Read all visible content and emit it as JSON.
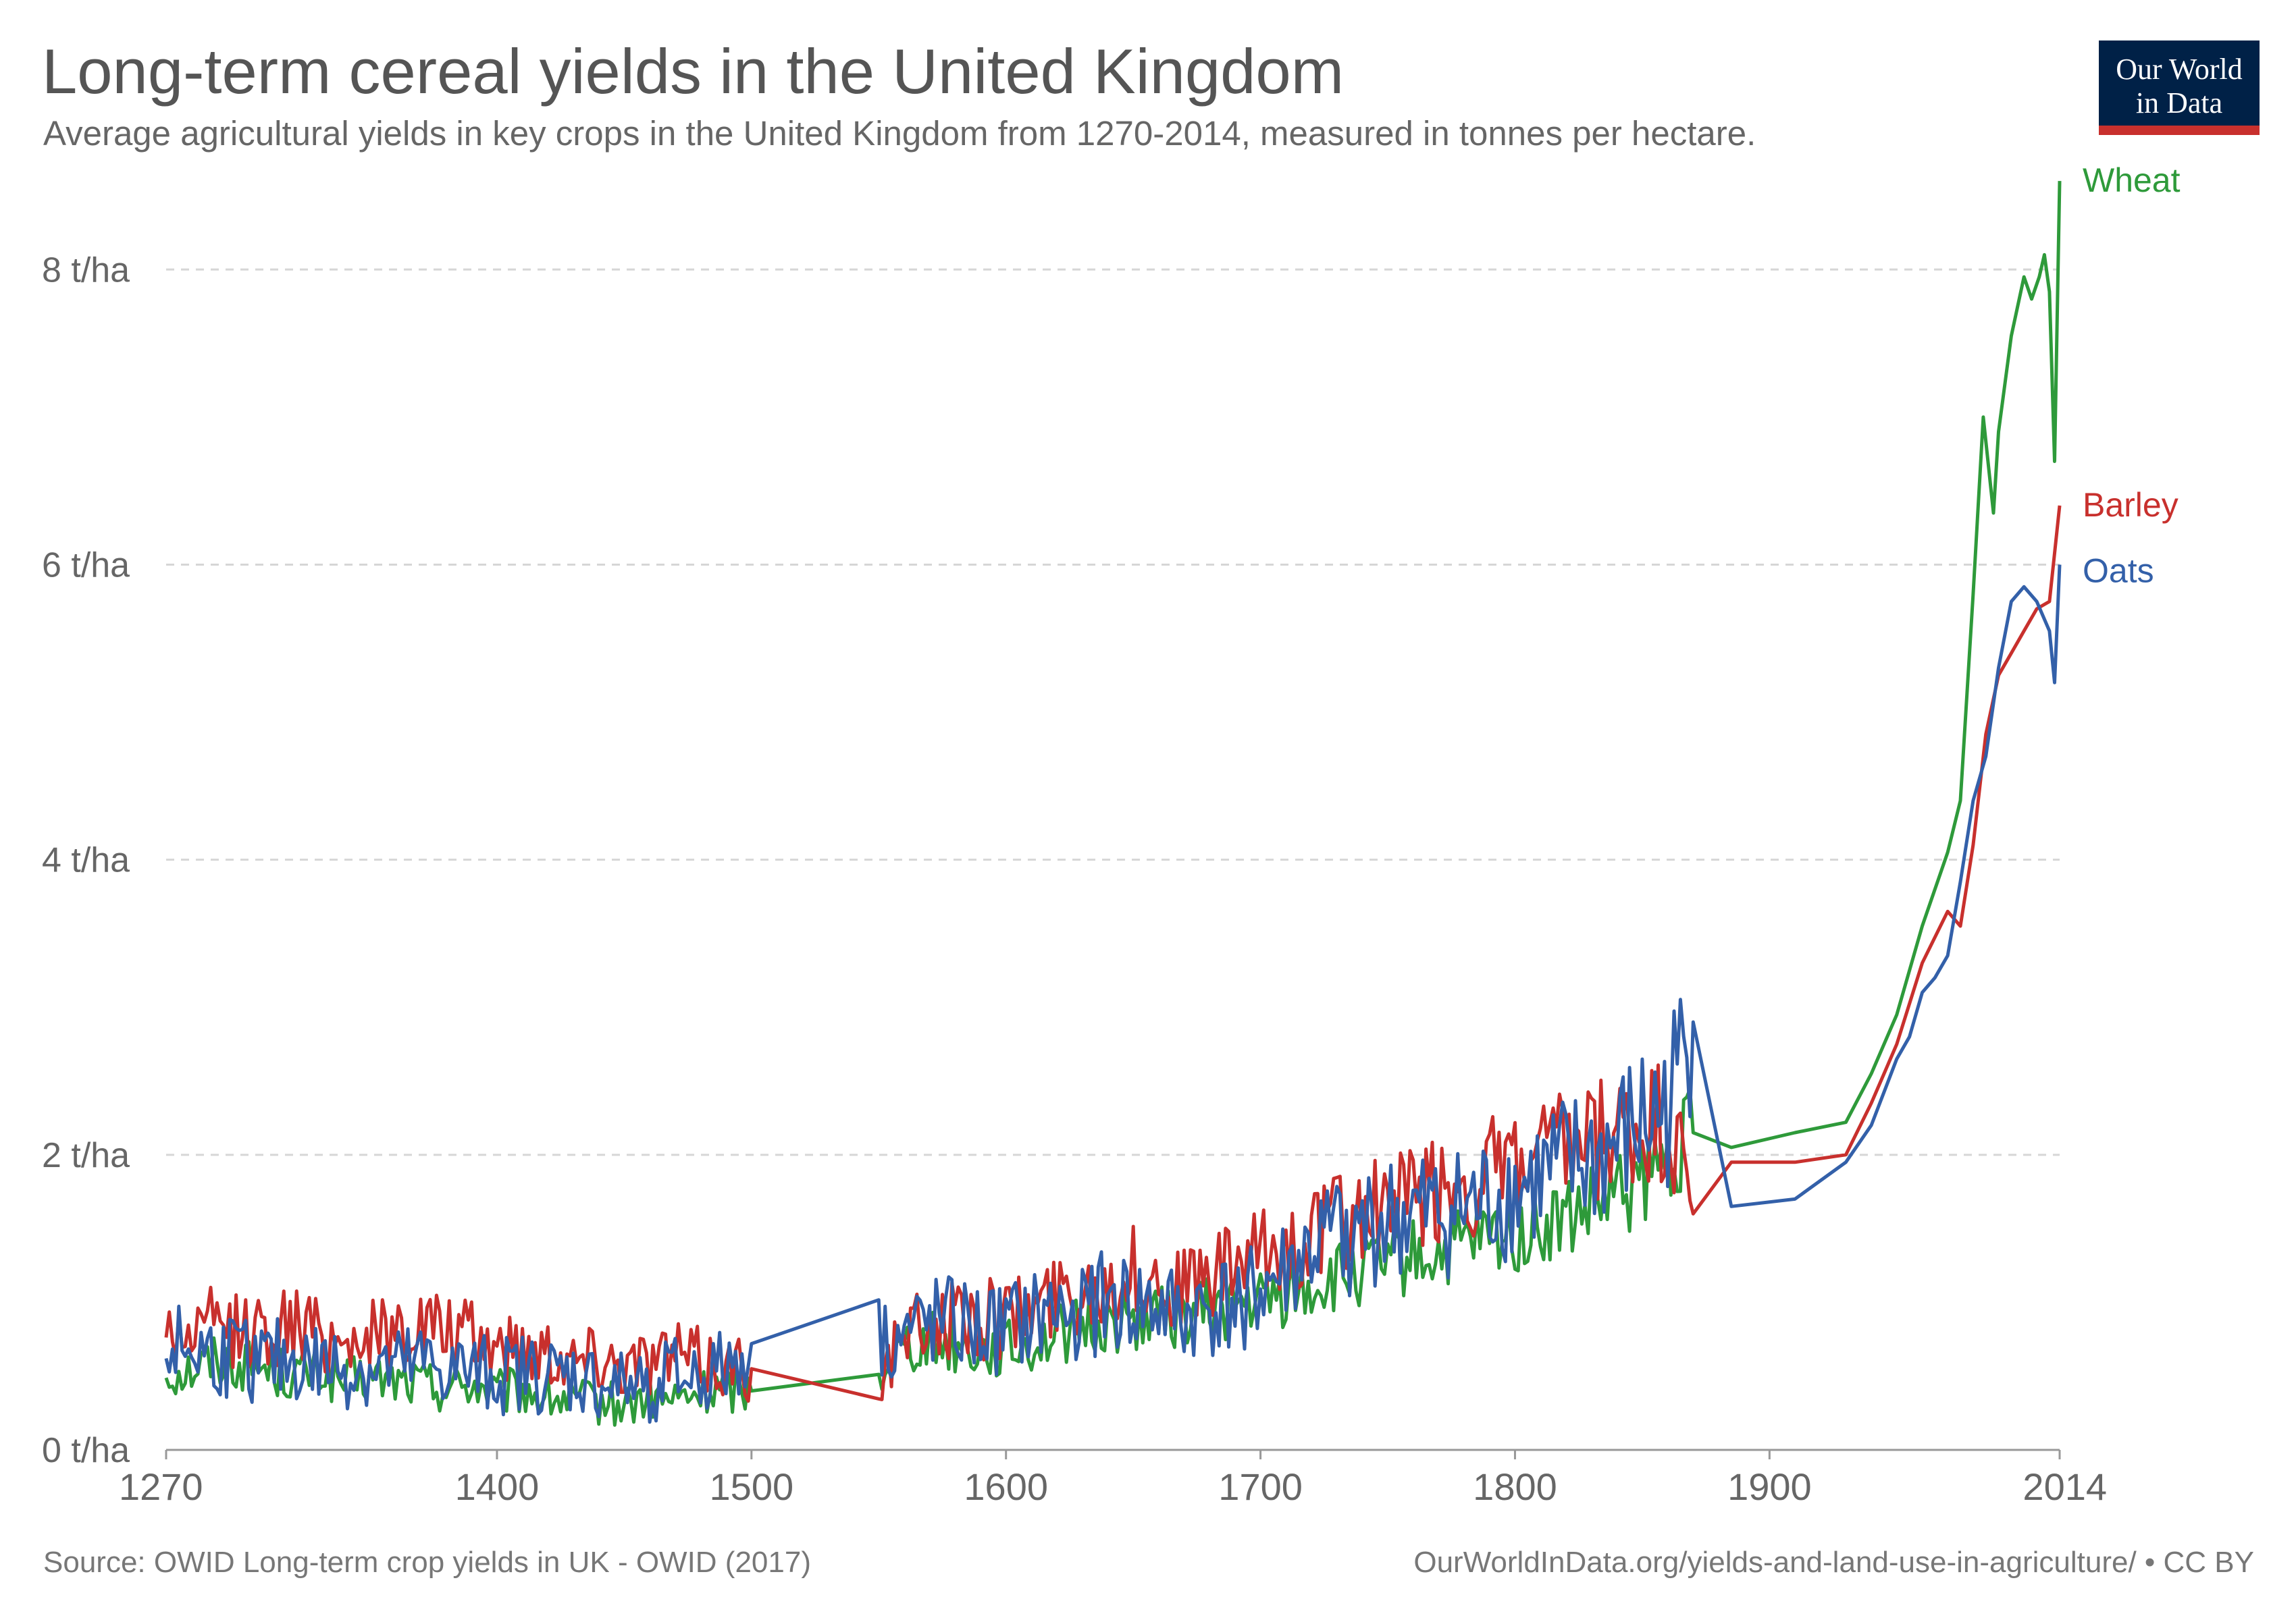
{
  "header": {
    "title": "Long-term cereal yields in the United Kingdom",
    "subtitle": "Average agricultural yields in key crops in the United Kingdom from 1270-2014, measured in tonnes per hectare."
  },
  "logo": {
    "line1": "Our World",
    "line2": "in Data",
    "bg_color": "#002147",
    "accent_color": "#c8302d"
  },
  "footer": {
    "source": "Source: OWID Long-term crop yields in UK - OWID (2017)",
    "license": "OurWorldInData.org/yields-and-land-use-in-agriculture/ • CC BY"
  },
  "chart_data": {
    "type": "line",
    "title": "Long-term cereal yields in the United Kingdom",
    "xlabel": "",
    "ylabel": "",
    "xlim": [
      1270,
      2014
    ],
    "ylim": [
      0,
      8.5
    ],
    "x_ticks": [
      1270,
      1400,
      1500,
      1600,
      1700,
      1800,
      1900,
      2014
    ],
    "y_ticks": [
      {
        "value": 0,
        "label": "0 t/ha"
      },
      {
        "value": 2,
        "label": "2 t/ha"
      },
      {
        "value": 4,
        "label": "4 t/ha"
      },
      {
        "value": 6,
        "label": "6 t/ha"
      },
      {
        "value": 8,
        "label": "8 t/ha"
      }
    ],
    "grid": "horizontal dashed",
    "legend": "line-end labels",
    "series": [
      {
        "name": "Wheat",
        "color": "#2e9a3a",
        "points": [
          [
            1270,
            0.52
          ],
          [
            1280,
            0.55
          ],
          [
            1290,
            0.62
          ],
          [
            1300,
            0.58
          ],
          [
            1310,
            0.55
          ],
          [
            1320,
            0.5
          ],
          [
            1330,
            0.53
          ],
          [
            1340,
            0.45
          ],
          [
            1350,
            0.48
          ],
          [
            1360,
            0.47
          ],
          [
            1370,
            0.45
          ],
          [
            1380,
            0.42
          ],
          [
            1390,
            0.45
          ],
          [
            1400,
            0.38
          ],
          [
            1410,
            0.4
          ],
          [
            1420,
            0.35
          ],
          [
            1430,
            0.33
          ],
          [
            1440,
            0.32
          ],
          [
            1450,
            0.3
          ],
          [
            1460,
            0.35
          ],
          [
            1470,
            0.33
          ],
          [
            1480,
            0.38
          ],
          [
            1490,
            0.42
          ],
          [
            1500,
            0.4
          ],
          [
            1550,
            0.55
          ],
          [
            1560,
            0.72
          ],
          [
            1570,
            0.75
          ],
          [
            1580,
            0.72
          ],
          [
            1590,
            0.68
          ],
          [
            1600,
            0.68
          ],
          [
            1610,
            0.72
          ],
          [
            1620,
            0.78
          ],
          [
            1630,
            0.82
          ],
          [
            1640,
            0.85
          ],
          [
            1650,
            0.88
          ],
          [
            1660,
            0.9
          ],
          [
            1670,
            0.92
          ],
          [
            1680,
            0.95
          ],
          [
            1690,
            0.98
          ],
          [
            1700,
            1.0
          ],
          [
            1710,
            1.05
          ],
          [
            1720,
            1.1
          ],
          [
            1730,
            1.15
          ],
          [
            1740,
            1.2
          ],
          [
            1750,
            1.25
          ],
          [
            1760,
            1.3
          ],
          [
            1770,
            1.32
          ],
          [
            1780,
            1.38
          ],
          [
            1790,
            1.42
          ],
          [
            1800,
            1.45
          ],
          [
            1810,
            1.5
          ],
          [
            1820,
            1.55
          ],
          [
            1830,
            1.62
          ],
          [
            1840,
            1.7
          ],
          [
            1850,
            1.8
          ],
          [
            1860,
            1.95
          ],
          [
            1870,
            2.15
          ],
          [
            1885,
            2.05
          ],
          [
            1910,
            2.15
          ],
          [
            1930,
            2.22
          ],
          [
            1940,
            2.55
          ],
          [
            1950,
            2.95
          ],
          [
            1960,
            3.55
          ],
          [
            1970,
            4.05
          ],
          [
            1975,
            4.4
          ],
          [
            1980,
            5.8
          ],
          [
            1984,
            7.0
          ],
          [
            1988,
            6.35
          ],
          [
            1990,
            6.9
          ],
          [
            1995,
            7.55
          ],
          [
            2000,
            7.95
          ],
          [
            2003,
            7.8
          ],
          [
            2006,
            7.95
          ],
          [
            2008,
            8.1
          ],
          [
            2010,
            7.85
          ],
          [
            2012,
            6.7
          ],
          [
            2014,
            8.6
          ]
        ]
      },
      {
        "name": "Barley",
        "color": "#c8302d",
        "points": [
          [
            1270,
            0.82
          ],
          [
            1280,
            0.78
          ],
          [
            1290,
            0.85
          ],
          [
            1300,
            0.8
          ],
          [
            1310,
            0.82
          ],
          [
            1320,
            0.85
          ],
          [
            1330,
            0.78
          ],
          [
            1340,
            0.75
          ],
          [
            1350,
            0.78
          ],
          [
            1360,
            0.8
          ],
          [
            1370,
            0.85
          ],
          [
            1380,
            0.8
          ],
          [
            1390,
            0.75
          ],
          [
            1400,
            0.72
          ],
          [
            1410,
            0.68
          ],
          [
            1420,
            0.7
          ],
          [
            1430,
            0.62
          ],
          [
            1440,
            0.65
          ],
          [
            1450,
            0.6
          ],
          [
            1460,
            0.62
          ],
          [
            1470,
            0.65
          ],
          [
            1480,
            0.6
          ],
          [
            1490,
            0.58
          ],
          [
            1500,
            0.55
          ],
          [
            1550,
            0.5
          ],
          [
            1560,
            0.75
          ],
          [
            1570,
            0.85
          ],
          [
            1580,
            0.9
          ],
          [
            1590,
            0.88
          ],
          [
            1600,
            0.9
          ],
          [
            1610,
            0.95
          ],
          [
            1620,
            1.05
          ],
          [
            1630,
            1.1
          ],
          [
            1640,
            1.15
          ],
          [
            1650,
            1.2
          ],
          [
            1660,
            1.15
          ],
          [
            1670,
            1.1
          ],
          [
            1680,
            1.15
          ],
          [
            1690,
            1.25
          ],
          [
            1700,
            1.3
          ],
          [
            1710,
            1.38
          ],
          [
            1720,
            1.45
          ],
          [
            1730,
            1.55
          ],
          [
            1740,
            1.6
          ],
          [
            1750,
            1.65
          ],
          [
            1760,
            1.7
          ],
          [
            1770,
            1.75
          ],
          [
            1780,
            1.8
          ],
          [
            1790,
            1.85
          ],
          [
            1800,
            1.9
          ],
          [
            1810,
            1.95
          ],
          [
            1820,
            2.0
          ],
          [
            1830,
            2.05
          ],
          [
            1840,
            2.1
          ],
          [
            1850,
            2.15
          ],
          [
            1860,
            2.2
          ],
          [
            1870,
            1.6
          ],
          [
            1885,
            1.95
          ],
          [
            1910,
            1.95
          ],
          [
            1930,
            2.0
          ],
          [
            1940,
            2.35
          ],
          [
            1950,
            2.75
          ],
          [
            1960,
            3.3
          ],
          [
            1970,
            3.65
          ],
          [
            1975,
            3.55
          ],
          [
            1980,
            4.1
          ],
          [
            1985,
            4.85
          ],
          [
            1990,
            5.25
          ],
          [
            1995,
            5.4
          ],
          [
            2000,
            5.55
          ],
          [
            2005,
            5.7
          ],
          [
            2010,
            5.75
          ],
          [
            2014,
            6.4
          ]
        ]
      },
      {
        "name": "Oats",
        "color": "#3360a9",
        "points": [
          [
            1270,
            0.7
          ],
          [
            1280,
            0.68
          ],
          [
            1290,
            0.65
          ],
          [
            1300,
            0.62
          ],
          [
            1310,
            0.6
          ],
          [
            1320,
            0.6
          ],
          [
            1330,
            0.58
          ],
          [
            1340,
            0.55
          ],
          [
            1350,
            0.55
          ],
          [
            1360,
            0.55
          ],
          [
            1370,
            0.58
          ],
          [
            1380,
            0.55
          ],
          [
            1390,
            0.52
          ],
          [
            1400,
            0.5
          ],
          [
            1410,
            0.52
          ],
          [
            1420,
            0.5
          ],
          [
            1430,
            0.5
          ],
          [
            1440,
            0.45
          ],
          [
            1450,
            0.42
          ],
          [
            1460,
            0.45
          ],
          [
            1470,
            0.5
          ],
          [
            1480,
            0.5
          ],
          [
            1490,
            0.55
          ],
          [
            1500,
            0.72
          ],
          [
            1550,
            0.75
          ],
          [
            1560,
            0.78
          ],
          [
            1570,
            0.85
          ],
          [
            1580,
            0.85
          ],
          [
            1590,
            0.8
          ],
          [
            1600,
            0.82
          ],
          [
            1610,
            0.88
          ],
          [
            1620,
            0.95
          ],
          [
            1630,
            0.95
          ],
          [
            1640,
            1.0
          ],
          [
            1650,
            0.98
          ],
          [
            1660,
            0.95
          ],
          [
            1670,
            0.9
          ],
          [
            1680,
            0.95
          ],
          [
            1690,
            1.0
          ],
          [
            1700,
            1.1
          ],
          [
            1710,
            1.2
          ],
          [
            1720,
            1.35
          ],
          [
            1730,
            1.45
          ],
          [
            1740,
            1.5
          ],
          [
            1750,
            1.55
          ],
          [
            1760,
            1.58
          ],
          [
            1770,
            1.6
          ],
          [
            1780,
            1.62
          ],
          [
            1790,
            1.68
          ],
          [
            1800,
            1.75
          ],
          [
            1810,
            1.82
          ],
          [
            1820,
            1.9
          ],
          [
            1830,
            1.95
          ],
          [
            1840,
            2.05
          ],
          [
            1850,
            2.2
          ],
          [
            1860,
            2.3
          ],
          [
            1870,
            2.9
          ],
          [
            1885,
            1.65
          ],
          [
            1910,
            1.7
          ],
          [
            1930,
            1.95
          ],
          [
            1940,
            2.2
          ],
          [
            1950,
            2.65
          ],
          [
            1955,
            2.8
          ],
          [
            1960,
            3.1
          ],
          [
            1965,
            3.2
          ],
          [
            1970,
            3.35
          ],
          [
            1975,
            3.85
          ],
          [
            1980,
            4.4
          ],
          [
            1985,
            4.7
          ],
          [
            1990,
            5.3
          ],
          [
            1995,
            5.75
          ],
          [
            2000,
            5.85
          ],
          [
            2005,
            5.75
          ],
          [
            2010,
            5.55
          ],
          [
            2012,
            5.2
          ],
          [
            2014,
            6.0
          ]
        ]
      }
    ]
  }
}
